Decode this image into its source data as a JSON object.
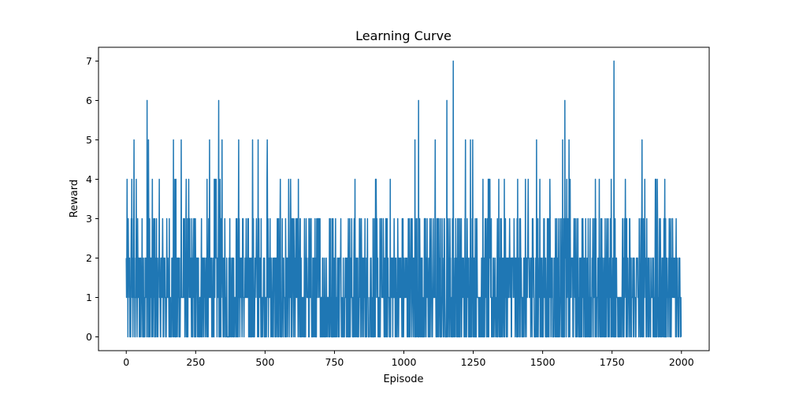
{
  "chart_data": {
    "type": "line",
    "title": "Learning Curve",
    "xlabel": "Episode",
    "ylabel": "Reward",
    "xlim": [
      -100,
      2100
    ],
    "ylim": [
      -0.35,
      7.35
    ],
    "xticks": [
      0,
      250,
      500,
      750,
      1000,
      1250,
      1500,
      1750,
      2000
    ],
    "yticks": [
      0,
      1,
      2,
      3,
      4,
      5,
      6,
      7
    ],
    "grid": false,
    "series": [
      {
        "color": "#1f77b4",
        "x_start": 0,
        "x_step": 1,
        "n_points": 2000,
        "reward_range": [
          0,
          7
        ],
        "peaks": [
          {
            "episode": 20,
            "reward": 4
          },
          {
            "episode": 28,
            "reward": 5
          },
          {
            "episode": 75,
            "reward": 6
          },
          {
            "episode": 80,
            "reward": 5
          },
          {
            "episode": 170,
            "reward": 5
          },
          {
            "episode": 198,
            "reward": 5
          },
          {
            "episode": 300,
            "reward": 5
          },
          {
            "episode": 333,
            "reward": 6
          },
          {
            "episode": 345,
            "reward": 5
          },
          {
            "episode": 405,
            "reward": 5
          },
          {
            "episode": 455,
            "reward": 5
          },
          {
            "episode": 475,
            "reward": 5
          },
          {
            "episode": 508,
            "reward": 5
          },
          {
            "episode": 1040,
            "reward": 5
          },
          {
            "episode": 1053,
            "reward": 6
          },
          {
            "episode": 1113,
            "reward": 5
          },
          {
            "episode": 1155,
            "reward": 6
          },
          {
            "episode": 1178,
            "reward": 7
          },
          {
            "episode": 1222,
            "reward": 5
          },
          {
            "episode": 1240,
            "reward": 5
          },
          {
            "episode": 1248,
            "reward": 5
          },
          {
            "episode": 1478,
            "reward": 5
          },
          {
            "episode": 1572,
            "reward": 5
          },
          {
            "episode": 1580,
            "reward": 6
          },
          {
            "episode": 1595,
            "reward": 5
          },
          {
            "episode": 1757,
            "reward": 7
          },
          {
            "episode": 1858,
            "reward": 5
          }
        ]
      }
    ]
  }
}
